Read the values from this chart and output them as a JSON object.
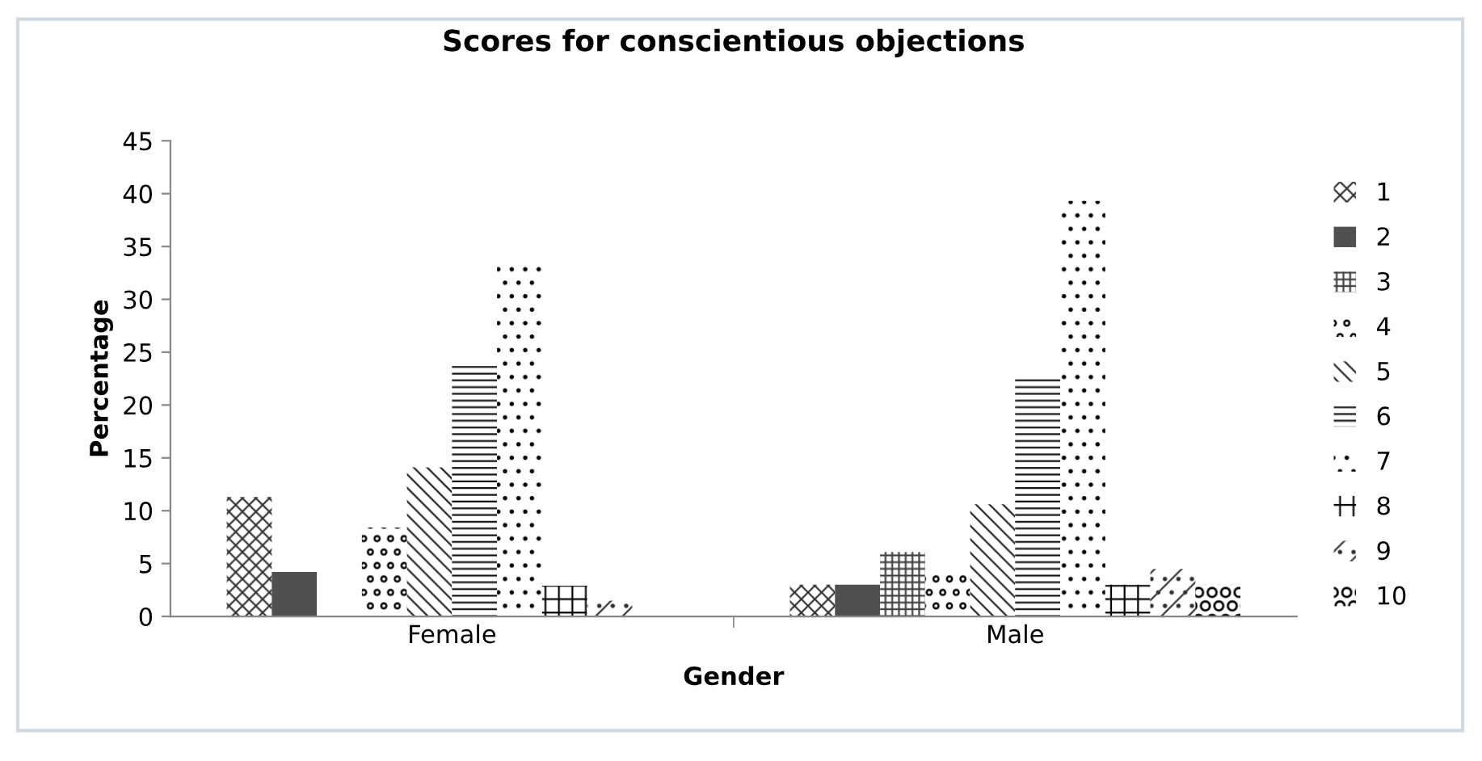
{
  "chart_data": {
    "type": "bar",
    "title": "Scores for conscientious objections",
    "xlabel": "Gender",
    "ylabel": "Percentage",
    "categories": [
      "Female",
      "Male"
    ],
    "series": [
      {
        "name": "1",
        "color": "#303030",
        "values": [
          11.3,
          3.0
        ]
      },
      {
        "name": "2",
        "color": "#505050",
        "values": [
          4.2,
          3.0
        ]
      },
      {
        "name": "3",
        "color": "#404040",
        "values": [
          0,
          6.1
        ]
      },
      {
        "name": "4",
        "color": "#000000",
        "values": [
          8.4,
          4.4
        ]
      },
      {
        "name": "5",
        "color": "#202020",
        "values": [
          14.1,
          10.6
        ]
      },
      {
        "name": "6",
        "color": "#101010",
        "values": [
          23.7,
          22.6
        ]
      },
      {
        "name": "7",
        "color": "#000000",
        "values": [
          33.6,
          39.3
        ]
      },
      {
        "name": "8",
        "color": "#000000",
        "values": [
          2.9,
          3.0
        ]
      },
      {
        "name": "9",
        "color": "#303030",
        "values": [
          1.5,
          4.5
        ]
      },
      {
        "name": "10",
        "color": "#000000",
        "values": [
          0,
          3.0
        ]
      }
    ],
    "ylim": [
      0,
      45
    ],
    "yticks": [
      0,
      5,
      10,
      15,
      20,
      25,
      30,
      35,
      40,
      45
    ],
    "grid": false,
    "legend": "right"
  }
}
